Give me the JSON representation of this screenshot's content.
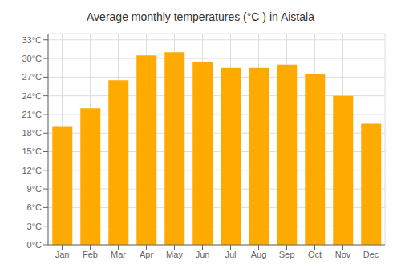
{
  "chart_data": {
    "type": "bar",
    "title": "Average monthly temperatures (°C ) in Aistala",
    "categories": [
      "Jan",
      "Feb",
      "Mar",
      "Apr",
      "May",
      "Jun",
      "Jul",
      "Aug",
      "Sep",
      "Oct",
      "Nov",
      "Dec"
    ],
    "values": [
      19.0,
      22.0,
      26.5,
      30.5,
      31.0,
      29.5,
      28.5,
      28.5,
      29.0,
      27.5,
      24.0,
      19.5
    ],
    "color": "#FFAA00",
    "ylim": [
      0,
      34
    ],
    "yticks": [
      {
        "value": 0,
        "label": "0°C"
      },
      {
        "value": 3,
        "label": "3°C"
      },
      {
        "value": 6,
        "label": "6°C"
      },
      {
        "value": 9,
        "label": "9°C"
      },
      {
        "value": 12,
        "label": "12°C"
      },
      {
        "value": 15,
        "label": "15°C"
      },
      {
        "value": 18,
        "label": "18°C"
      },
      {
        "value": 21,
        "label": "21°C"
      },
      {
        "value": 24,
        "label": "24°C"
      },
      {
        "value": 27,
        "label": "27°C"
      },
      {
        "value": 30,
        "label": "30°C"
      },
      {
        "value": 33,
        "label": "33°C"
      }
    ],
    "grid": true
  }
}
